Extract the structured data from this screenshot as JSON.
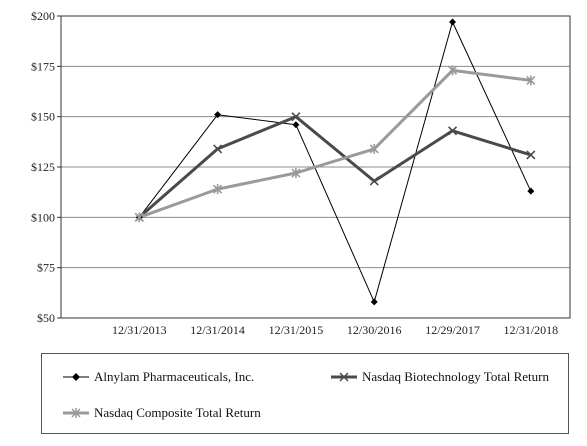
{
  "chart_data": {
    "type": "line",
    "x": [
      "12/31/2013",
      "12/31/2014",
      "12/31/2015",
      "12/30/2016",
      "12/29/2017",
      "12/31/2018"
    ],
    "ylim": [
      50,
      200
    ],
    "y_ticks": [
      "$50",
      "$75",
      "$100",
      "$125",
      "$150",
      "$175",
      "$200"
    ],
    "grid": true,
    "legend_placement": "bottom",
    "series": [
      {
        "name": "Alnylam Pharmaceuticals, Inc.",
        "values": [
          100,
          151,
          146,
          58,
          197,
          113
        ],
        "color": "#000000",
        "marker": "diamond",
        "width": 1
      },
      {
        "name": "Nasdaq Biotechnology Total Return",
        "values": [
          100,
          134,
          150,
          118,
          143,
          131
        ],
        "color": "#4a4a4a",
        "marker": "x",
        "width": 3
      },
      {
        "name": "Nasdaq Composite Total Return",
        "values": [
          100,
          114,
          122,
          134,
          173,
          168
        ],
        "color": "#9a9a9a",
        "marker": "asterisk",
        "width": 3
      }
    ]
  }
}
